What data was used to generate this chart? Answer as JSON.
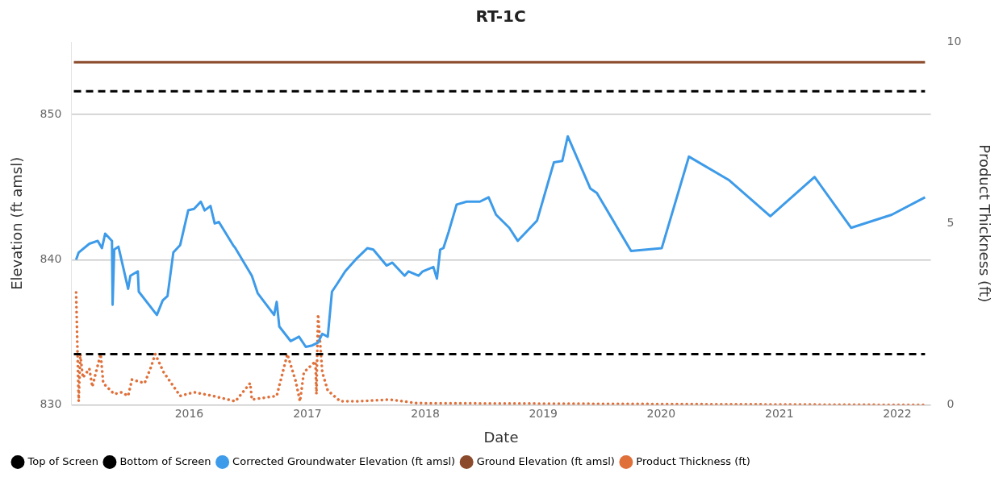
{
  "chart_data": {
    "type": "line",
    "title": "RT-1C",
    "xlabel": "Date",
    "ylabel": "Elevation (ft amsl)",
    "y2label": "Product Thickness (ft)",
    "xlim": [
      "2015-01-01",
      "2022-04-15"
    ],
    "xticks": [
      "2016",
      "2017",
      "2018",
      "2019",
      "2020",
      "2021",
      "2022"
    ],
    "ylim": [
      830,
      855
    ],
    "yticks": [
      830,
      840,
      850
    ],
    "y2lim": [
      0,
      10
    ],
    "y2ticks": [
      0,
      5,
      10
    ],
    "grid": "y",
    "legend": "bottom left",
    "marker": "none",
    "series": [
      {
        "name": "Top of Screen",
        "color": "#000000",
        "line_style": "dashed",
        "x": [
          "2015-01-09",
          "2022-03-28"
        ],
        "values": [
          851.6,
          851.6
        ]
      },
      {
        "name": "Bottom of Screen",
        "color": "#000000",
        "line_style": "dashed",
        "x": [
          "2015-01-09",
          "2022-03-28"
        ],
        "values": [
          833.5,
          833.5
        ]
      },
      {
        "name": "Corrected Groundwater Elevation (ft amsl)",
        "color": "#3d9be9",
        "line_style": "solid",
        "x": [
          "2015-01-16",
          "2015-01-24",
          "2015-02-26",
          "2015-03-24",
          "2015-04-06",
          "2015-04-16",
          "2015-05-07",
          "2015-05-09",
          "2015-05-14",
          "2015-05-27",
          "2015-06-26",
          "2015-07-03",
          "2015-07-26",
          "2015-07-29",
          "2015-09-23",
          "2015-10-11",
          "2015-10-26",
          "2015-11-13",
          "2015-12-04",
          "2015-12-29",
          "2016-01-16",
          "2016-02-06",
          "2016-02-18",
          "2016-03-07",
          "2016-03-20",
          "2016-04-02",
          "2016-05-16",
          "2016-05-23",
          "2016-07-13",
          "2016-07-31",
          "2016-09-20",
          "2016-09-28",
          "2016-10-06",
          "2016-11-10",
          "2016-12-06",
          "2016-12-27",
          "2017-01-16",
          "2017-02-03",
          "2017-02-16",
          "2017-03-05",
          "2017-03-18",
          "2017-04-02",
          "2017-04-28",
          "2017-06-03",
          "2017-07-06",
          "2017-07-24",
          "2017-09-03",
          "2017-09-21",
          "2017-10-29",
          "2017-11-10",
          "2017-12-11",
          "2017-12-24",
          "2018-01-26",
          "2018-02-06",
          "2018-02-16",
          "2018-02-26",
          "2018-03-14",
          "2018-04-08",
          "2018-05-09",
          "2018-06-19",
          "2018-07-16",
          "2018-08-08",
          "2018-09-18",
          "2018-10-14",
          "2018-12-13",
          "2019-02-03",
          "2019-03-01",
          "2019-03-18",
          "2019-05-27",
          "2019-06-16",
          "2019-09-30",
          "2020-01-03",
          "2020-03-27",
          "2020-07-28",
          "2020-12-04",
          "2021-04-20",
          "2021-08-11",
          "2021-12-15",
          "2022-03-28"
        ],
        "values": [
          840.0,
          840.5,
          841.1,
          841.3,
          840.8,
          841.8,
          841.3,
          836.9,
          840.7,
          840.9,
          838.0,
          838.9,
          839.2,
          837.8,
          836.2,
          837.2,
          837.5,
          840.5,
          841.0,
          843.4,
          843.5,
          844.0,
          843.4,
          843.7,
          842.5,
          842.6,
          841.0,
          840.8,
          838.9,
          837.7,
          836.2,
          837.1,
          835.4,
          834.4,
          834.7,
          834.0,
          834.1,
          834.3,
          834.9,
          834.7,
          837.8,
          838.3,
          839.2,
          840.1,
          840.8,
          840.7,
          839.6,
          839.8,
          838.9,
          839.2,
          838.9,
          839.2,
          839.5,
          838.7,
          840.7,
          840.8,
          841.9,
          843.8,
          844.0,
          844.0,
          844.3,
          843.1,
          842.2,
          841.3,
          842.7,
          846.7,
          846.8,
          848.5,
          844.9,
          844.6,
          840.6,
          840.8,
          847.1,
          845.5,
          843.0,
          845.7,
          842.2,
          843.1,
          844.3
        ]
      },
      {
        "name": "Ground Elevation (ft amsl)",
        "color": "#8b4a2b",
        "line_style": "solid",
        "x": [
          "2015-01-09",
          "2022-03-28"
        ],
        "values": [
          853.6,
          853.6
        ]
      },
      {
        "name": "Product Thickness (ft)",
        "color": "#e0703a",
        "line_style": "dotted",
        "axis": "y2",
        "x": [
          "2015-01-16",
          "2015-01-24",
          "2015-01-29",
          "2015-02-06",
          "2015-02-26",
          "2015-03-07",
          "2015-04-02",
          "2015-04-10",
          "2015-05-14",
          "2015-06-06",
          "2015-06-26",
          "2015-07-08",
          "2015-08-16",
          "2015-09-03",
          "2015-09-18",
          "2015-10-14",
          "2015-12-04",
          "2016-01-16",
          "2016-03-14",
          "2016-05-23",
          "2016-07-08",
          "2016-07-13",
          "2016-09-28",
          "2016-10-31",
          "2016-11-26",
          "2016-12-09",
          "2016-12-21",
          "2017-01-26",
          "2017-01-29",
          "2017-02-03",
          "2017-02-16",
          "2017-03-05",
          "2017-04-13",
          "2017-06-03",
          "2017-09-13",
          "2017-12-06",
          "2022-03-28"
        ],
        "values": [
          3.1,
          0.1,
          1.4,
          0.75,
          1.0,
          0.5,
          1.4,
          0.6,
          0.3,
          0.35,
          0.25,
          0.7,
          0.6,
          1.0,
          1.4,
          0.9,
          0.25,
          0.35,
          0.25,
          0.1,
          0.6,
          0.15,
          0.25,
          1.4,
          0.65,
          0.1,
          0.9,
          1.2,
          0.3,
          2.5,
          0.9,
          0.4,
          0.1,
          0.1,
          0.15,
          0.05,
          0
        ]
      }
    ]
  }
}
